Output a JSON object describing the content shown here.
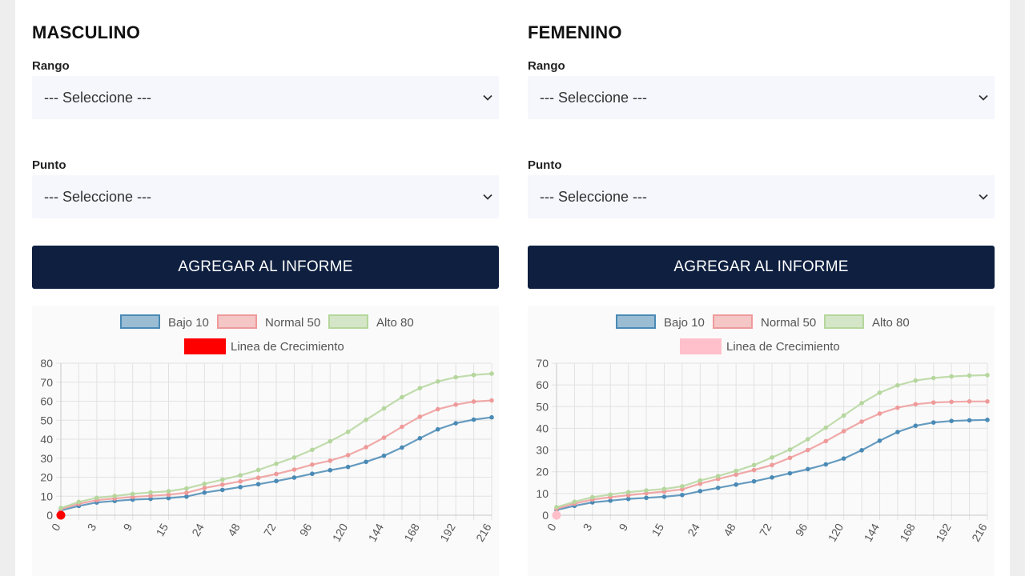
{
  "panels": [
    {
      "id": "masculino",
      "title": "MASCULINO",
      "rango": {
        "label": "Rango",
        "value": "--- Seleccione ---"
      },
      "punto": {
        "label": "Punto",
        "value": "--- Seleccione ---"
      },
      "button_label": "AGREGAR AL INFORME",
      "legend": [
        "Bajo 10",
        "Normal 50",
        "Alto 80",
        "Linea de Crecimiento"
      ]
    },
    {
      "id": "femenino",
      "title": "FEMENINO",
      "rango": {
        "label": "Rango",
        "value": "--- Seleccione ---"
      },
      "punto": {
        "label": "Punto",
        "value": "--- Seleccione ---"
      },
      "button_label": "AGREGAR AL INFORME",
      "legend": [
        "Bajo 10",
        "Normal 50",
        "Alto 80",
        "Linea de Crecimiento"
      ]
    }
  ],
  "colors": {
    "bajo": "#4a8ab5",
    "normal": "#ef9a9a",
    "alto": "#b5d69d",
    "crecimiento_masculino": "#ff0000",
    "crecimiento_femenino": "#ffc0cb",
    "button_bg": "#0e1f40",
    "select_bg": "#f5f7fc"
  },
  "chart_data": [
    {
      "type": "line",
      "x_tick_labels": [
        "0",
        "3",
        "9",
        "15",
        "24",
        "48",
        "72",
        "96",
        "120",
        "144",
        "168",
        "192",
        "216"
      ],
      "ylim": [
        0,
        80
      ],
      "yticks": [
        0,
        10,
        20,
        30,
        40,
        50,
        60,
        70,
        80
      ],
      "grid": true,
      "legend_position": "top",
      "series": [
        {
          "name": "Bajo 10",
          "values": [
            2.5,
            4.9,
            6.7,
            7.5,
            8.2,
            8.6,
            9.0,
            9.8,
            11.9,
            13.3,
            14.8,
            16.3,
            18.0,
            19.8,
            21.8,
            23.7,
            25.4,
            28.1,
            31.3,
            35.6,
            40.5,
            45.2,
            48.4,
            50.3,
            51.5
          ]
        },
        {
          "name": "Normal 50",
          "values": [
            3.2,
            6.0,
            7.9,
            8.8,
            9.6,
            10.2,
            10.8,
            11.8,
            14.3,
            16.1,
            17.8,
            19.7,
            21.7,
            24.0,
            26.6,
            28.7,
            31.6,
            35.8,
            40.8,
            46.5,
            51.8,
            55.8,
            58.2,
            59.8,
            60.4
          ]
        },
        {
          "name": "Alto 80",
          "values": [
            3.8,
            7.0,
            9.2,
            10.1,
            11.2,
            12.0,
            12.6,
            14.1,
            16.5,
            18.7,
            21.0,
            23.8,
            27.1,
            30.4,
            34.4,
            38.9,
            43.9,
            50.2,
            56.2,
            62.1,
            66.9,
            70.4,
            72.6,
            73.8,
            74.5
          ]
        }
      ],
      "growth_line": {
        "name": "Linea de Crecimiento",
        "x_index": 0,
        "value": 0
      }
    },
    {
      "type": "line",
      "x_tick_labels": [
        "0",
        "3",
        "9",
        "15",
        "24",
        "48",
        "72",
        "96",
        "120",
        "144",
        "168",
        "192",
        "216"
      ],
      "ylim": [
        0,
        70
      ],
      "yticks": [
        0,
        10,
        20,
        30,
        40,
        50,
        60,
        70
      ],
      "grid": true,
      "legend_position": "top",
      "series": [
        {
          "name": "Bajo 10",
          "values": [
            2.4,
            4.3,
            5.9,
            6.7,
            7.5,
            8.0,
            8.5,
            9.3,
            11.1,
            12.6,
            14.1,
            15.6,
            17.4,
            19.3,
            21.2,
            23.4,
            26.1,
            29.9,
            34.3,
            38.3,
            41.2,
            42.7,
            43.4,
            43.7,
            43.9
          ]
        },
        {
          "name": "Normal 50",
          "values": [
            3.0,
            5.3,
            7.2,
            8.3,
            9.2,
            10.1,
            10.9,
            11.9,
            14.5,
            16.7,
            18.7,
            20.8,
            23.1,
            26.4,
            30.0,
            34.1,
            38.7,
            43.1,
            46.8,
            49.5,
            51.1,
            51.9,
            52.2,
            52.4,
            52.4
          ]
        },
        {
          "name": "Alto 80",
          "values": [
            3.7,
            6.2,
            8.3,
            9.5,
            10.6,
            11.4,
            12.1,
            13.3,
            16.0,
            18.0,
            20.4,
            23.1,
            26.6,
            30.2,
            35.0,
            40.3,
            45.9,
            51.6,
            56.4,
            59.8,
            62.0,
            63.2,
            63.9,
            64.3,
            64.5
          ]
        }
      ],
      "growth_line": {
        "name": "Linea de Crecimiento",
        "x_index": 0,
        "value": 0
      }
    }
  ]
}
